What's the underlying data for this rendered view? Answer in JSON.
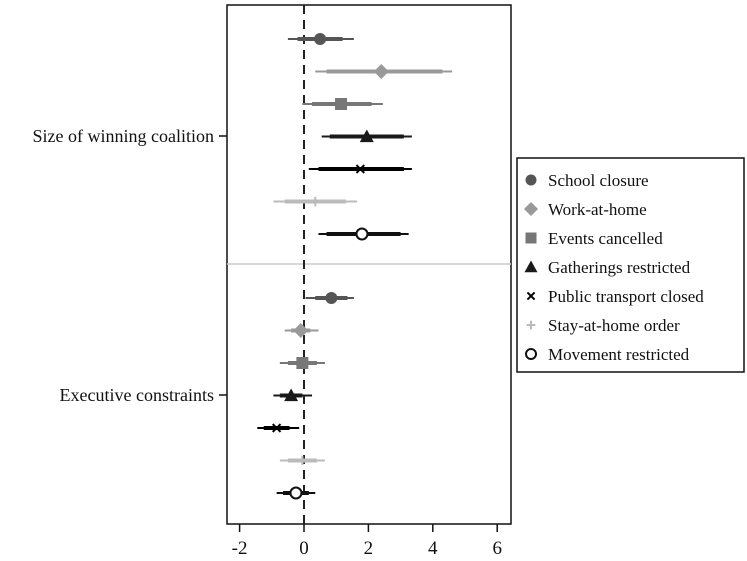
{
  "chart_data": {
    "type": "coefficient-plot",
    "title": "",
    "xlabel": "",
    "ylabel": "",
    "xlim": [
      -2.4,
      6.4
    ],
    "x_ticks": [
      -2,
      0,
      2,
      4,
      6
    ],
    "x_tick_labels": [
      "-2",
      "0",
      "2",
      "4",
      "6"
    ],
    "reference_line": 0,
    "grid": false,
    "legend_position": "right",
    "groups": [
      "Size of winning coalition",
      "Executive constraints"
    ],
    "series": [
      {
        "name": "School closure",
        "marker": "filled-circle",
        "color": "#555555",
        "points": [
          {
            "group": "Size of winning coalition",
            "estimate": 0.5,
            "ci90": [
              -0.2,
              1.2
            ],
            "ci95": [
              -0.5,
              1.55
            ]
          },
          {
            "group": "Executive constraints",
            "estimate": 0.85,
            "ci90": [
              0.35,
              1.35
            ],
            "ci95": [
              0.05,
              1.55
            ]
          }
        ]
      },
      {
        "name": "Work-at-home",
        "marker": "filled-diamond",
        "color": "#999999",
        "points": [
          {
            "group": "Size of winning coalition",
            "estimate": 2.4,
            "ci90": [
              0.7,
              4.3
            ],
            "ci95": [
              0.35,
              4.6
            ]
          },
          {
            "group": "Executive constraints",
            "estimate": -0.1,
            "ci90": [
              -0.4,
              0.2
            ],
            "ci95": [
              -0.6,
              0.45
            ]
          }
        ]
      },
      {
        "name": "Events cancelled",
        "marker": "filled-square",
        "color": "#777777",
        "points": [
          {
            "group": "Size of winning coalition",
            "estimate": 1.15,
            "ci90": [
              0.25,
              2.1
            ],
            "ci95": [
              -0.05,
              2.45
            ]
          },
          {
            "group": "Executive constraints",
            "estimate": -0.05,
            "ci90": [
              -0.5,
              0.4
            ],
            "ci95": [
              -0.75,
              0.65
            ]
          }
        ]
      },
      {
        "name": "Gatherings restricted",
        "marker": "filled-triangle",
        "color": "#1a1a1a",
        "points": [
          {
            "group": "Size of winning coalition",
            "estimate": 1.95,
            "ci90": [
              0.8,
              3.1
            ],
            "ci95": [
              0.55,
              3.35
            ]
          },
          {
            "group": "Executive constraints",
            "estimate": -0.4,
            "ci90": [
              -0.75,
              -0.05
            ],
            "ci95": [
              -0.95,
              0.25
            ]
          }
        ]
      },
      {
        "name": "Public transport closed",
        "marker": "x",
        "color": "#000000",
        "points": [
          {
            "group": "Size of winning coalition",
            "estimate": 1.75,
            "ci90": [
              0.45,
              3.1
            ],
            "ci95": [
              0.15,
              3.35
            ]
          },
          {
            "group": "Executive constraints",
            "estimate": -0.85,
            "ci90": [
              -1.25,
              -0.45
            ],
            "ci95": [
              -1.45,
              -0.15
            ]
          }
        ]
      },
      {
        "name": "Stay-at-home order",
        "marker": "plus",
        "color": "#bbbbbb",
        "points": [
          {
            "group": "Size of winning coalition",
            "estimate": 0.35,
            "ci90": [
              -0.6,
              1.3
            ],
            "ci95": [
              -0.95,
              1.65
            ]
          },
          {
            "group": "Executive constraints",
            "estimate": -0.05,
            "ci90": [
              -0.5,
              0.4
            ],
            "ci95": [
              -0.75,
              0.65
            ]
          }
        ]
      },
      {
        "name": "Movement restricted",
        "marker": "hollow-circle",
        "color": "#111111",
        "points": [
          {
            "group": "Size of winning coalition",
            "estimate": 1.8,
            "ci90": [
              0.7,
              3.0
            ],
            "ci95": [
              0.45,
              3.25
            ]
          },
          {
            "group": "Executive constraints",
            "estimate": -0.25,
            "ci90": [
              -0.65,
              0.15
            ],
            "ci95": [
              -0.85,
              0.35
            ]
          }
        ]
      }
    ]
  }
}
